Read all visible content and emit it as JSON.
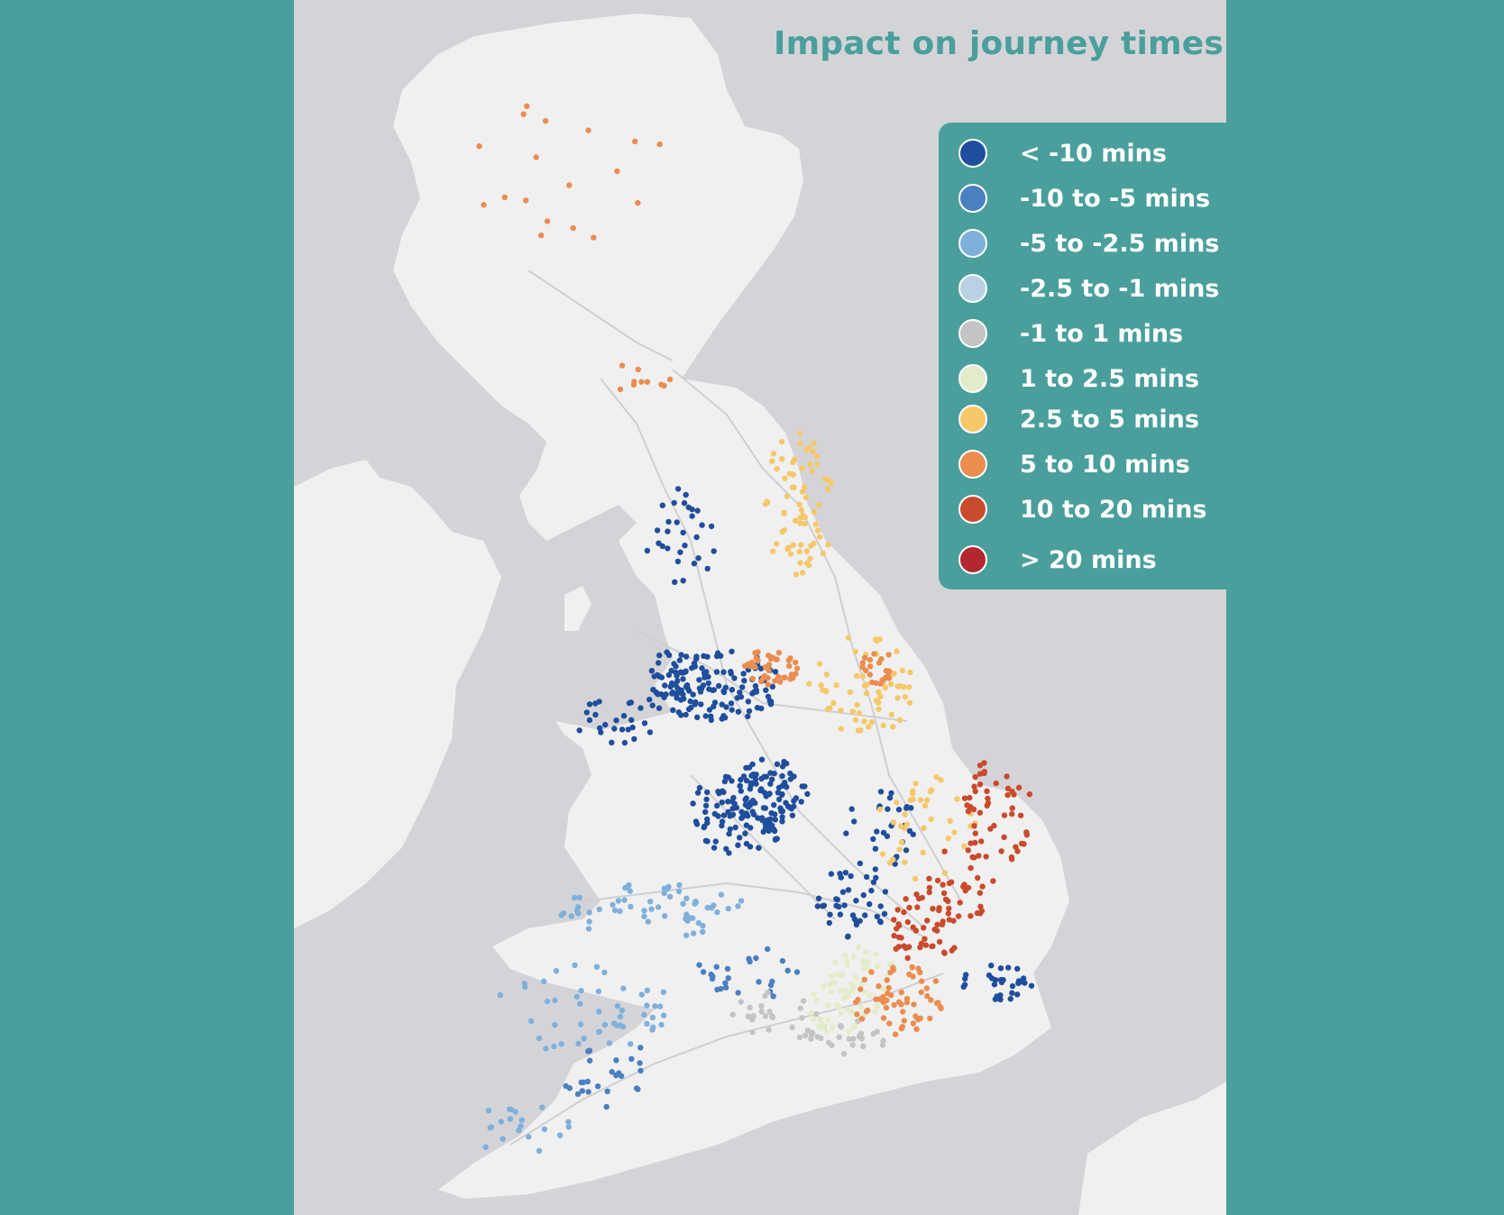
{
  "title": "Impact on journey times",
  "legend": {
    "items": [
      {
        "label": "< -10 mins",
        "color": "#1f4e9c"
      },
      {
        "label": "-10 to -5 mins",
        "color": "#4a7fc0"
      },
      {
        "label": "-5 to -2.5 mins",
        "color": "#7fb0dc"
      },
      {
        "label": "-2.5 to -1 mins",
        "color": "#b9d2e3"
      },
      {
        "label": "-1 to 1 mins",
        "color": "#c4c4c4"
      },
      {
        "label": "1 to 2.5 mins",
        "color": "#e3ecc8"
      },
      {
        "label": "2.5 to 5 mins",
        "color": "#f6c86a"
      },
      {
        "label": "5 to 10 mins",
        "color": "#eb8d4f"
      },
      {
        "label": "10 to 20 mins",
        "color": "#c94a2c"
      },
      {
        "label": "> 20 mins",
        "color": "#b3282f"
      }
    ]
  },
  "map": {
    "land_color": "#f0f0f0",
    "sea_color": "#d4d4d8",
    "road_color": "#cfcfd3"
  }
}
